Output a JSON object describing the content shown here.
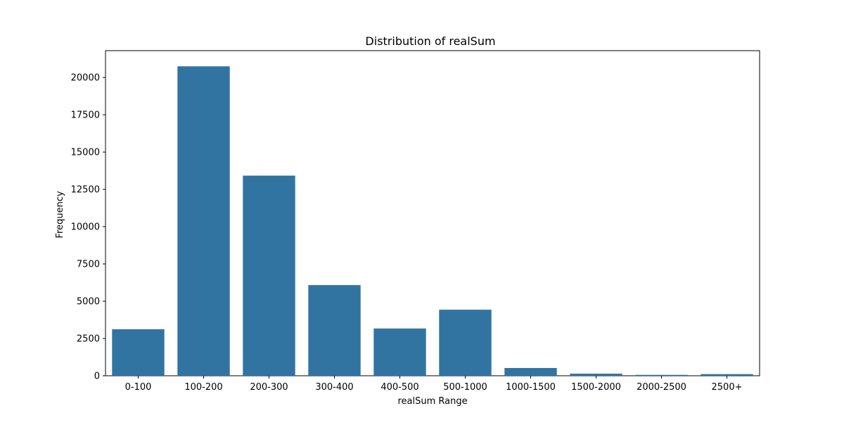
{
  "chart_data": {
    "type": "bar",
    "title": "Distribution of realSum",
    "xlabel": "realSum Range",
    "ylabel": "Frequency",
    "categories": [
      "0-100",
      "100-200",
      "200-300",
      "300-400",
      "400-500",
      "500-1000",
      "1000-1500",
      "1500-2000",
      "2000-2500",
      "2500+"
    ],
    "values": [
      3120,
      20750,
      13420,
      6080,
      3170,
      4430,
      520,
      140,
      60,
      110
    ],
    "ylim": [
      0,
      21800
    ],
    "yticks": [
      0,
      2500,
      5000,
      7500,
      10000,
      12500,
      15000,
      17500,
      20000
    ],
    "bar_color": "#3274a1",
    "grid": false,
    "legend": "none"
  }
}
